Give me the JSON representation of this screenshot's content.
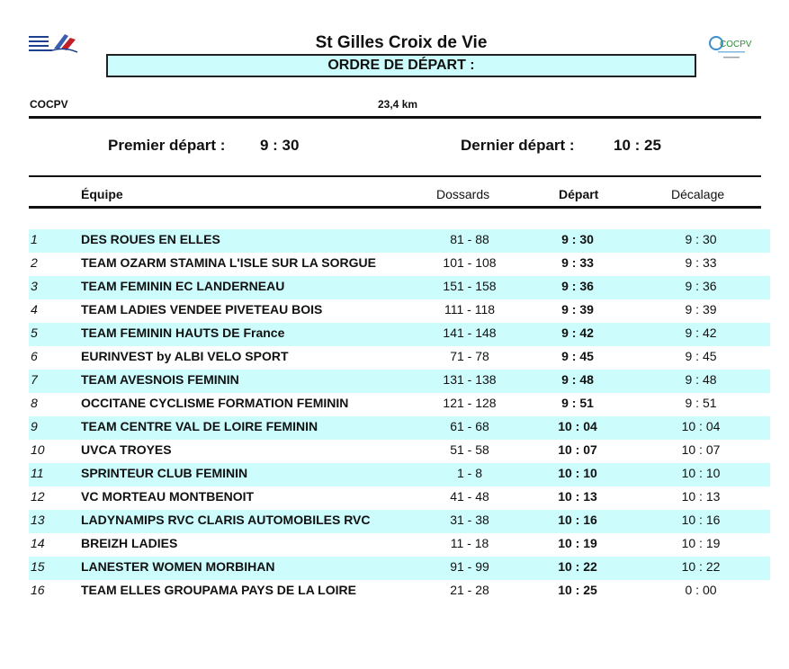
{
  "header": {
    "title": "St Gilles Croix de Vie",
    "subtitle": "ORDRE DE DÉPART :",
    "organizer": "COCPV",
    "distance": "23,4 km",
    "logo_right_text": "COCPV"
  },
  "start": {
    "first_label": "Premier départ :",
    "first_time": "9 : 30",
    "last_label": "Dernier départ :",
    "last_time": "10 : 25"
  },
  "table": {
    "columns": {
      "team": "Équipe",
      "bibs": "Dossards",
      "start": "Départ",
      "gap": "Décalage"
    },
    "rows": [
      {
        "n": "1",
        "team": "DES ROUES EN ELLES",
        "bibs": "81 - 88",
        "start": "9 : 30",
        "gap": "9 : 30"
      },
      {
        "n": "2",
        "team": "TEAM OZARM STAMINA L'ISLE SUR LA SORGUE",
        "bibs": "101 - 108",
        "start": "9 : 33",
        "gap": "9 : 33"
      },
      {
        "n": "3",
        "team": "TEAM FEMININ EC LANDERNEAU",
        "bibs": "151 - 158",
        "start": "9 : 36",
        "gap": "9 : 36"
      },
      {
        "n": "4",
        "team": "TEAM LADIES VENDEE PIVETEAU BOIS",
        "bibs": "111 - 118",
        "start": "9 : 39",
        "gap": "9 : 39"
      },
      {
        "n": "5",
        "team": "TEAM FEMININ HAUTS DE France",
        "bibs": "141 - 148",
        "start": "9 : 42",
        "gap": "9 : 42"
      },
      {
        "n": "6",
        "team": "EURINVEST by ALBI VELO SPORT",
        "bibs": "71 - 78",
        "start": "9 : 45",
        "gap": "9 : 45"
      },
      {
        "n": "7",
        "team": "TEAM AVESNOIS FEMININ",
        "bibs": "131 - 138",
        "start": "9 : 48",
        "gap": "9 : 48"
      },
      {
        "n": "8",
        "team": "OCCITANE CYCLISME FORMATION FEMININ",
        "bibs": "121 - 128",
        "start": "9 : 51",
        "gap": "9 : 51"
      },
      {
        "n": "9",
        "team": "TEAM CENTRE VAL DE LOIRE FEMININ",
        "bibs": "61 - 68",
        "start": "10 : 04",
        "gap": "10 : 04"
      },
      {
        "n": "10",
        "team": "UVCA TROYES",
        "bibs": "51 - 58",
        "start": "10 : 07",
        "gap": "10 : 07"
      },
      {
        "n": "11",
        "team": "SPRINTEUR CLUB FEMININ",
        "bibs": "1 - 8",
        "start": "10 : 10",
        "gap": "10 : 10"
      },
      {
        "n": "12",
        "team": "VC MORTEAU MONTBENOIT",
        "bibs": "41 - 48",
        "start": "10 : 13",
        "gap": "10 : 13"
      },
      {
        "n": "13",
        "team": "LADYNAMIPS RVC CLARIS AUTOMOBILES RVC",
        "bibs": "31 - 38",
        "start": "10 : 16",
        "gap": "10 : 16"
      },
      {
        "n": "14",
        "team": "BREIZH LADIES",
        "bibs": "11 - 18",
        "start": "10 : 19",
        "gap": "10 : 19"
      },
      {
        "n": "15",
        "team": "LANESTER WOMEN MORBIHAN",
        "bibs": "91 - 99",
        "start": "10 : 22",
        "gap": "10 : 22"
      },
      {
        "n": "16",
        "team": "TEAM ELLES GROUPAMA PAYS DE LA LOIRE",
        "bibs": "21 - 28",
        "start": "10 : 25",
        "gap": "0 : 00"
      }
    ]
  },
  "colors": {
    "row_shade": "#ccfcfc",
    "rule": "#111111"
  }
}
